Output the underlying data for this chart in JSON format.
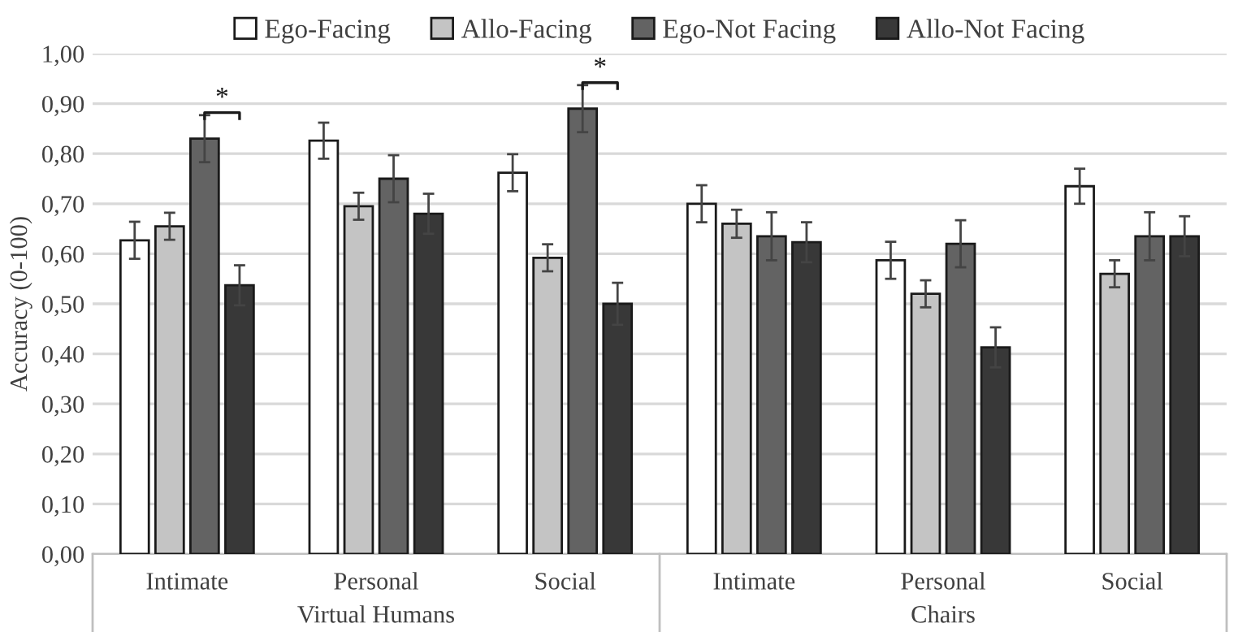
{
  "chart_data": {
    "type": "bar",
    "ylabel": "Accuracy (0-100)",
    "categories": [
      "Intimate",
      "Personal",
      "Social",
      "Intimate",
      "Personal",
      "Social"
    ],
    "series": [
      {
        "name": "Ego-Facing",
        "color": "#ffffff",
        "values": [
          0.627,
          0.826,
          0.762,
          0.7,
          0.587,
          0.735
        ],
        "errors": [
          0.037,
          0.036,
          0.037,
          0.037,
          0.037,
          0.035
        ]
      },
      {
        "name": "Allo-Facing",
        "color": "#c4c4c4",
        "values": [
          0.655,
          0.695,
          0.592,
          0.66,
          0.52,
          0.56
        ],
        "errors": [
          0.027,
          0.027,
          0.027,
          0.028,
          0.027,
          0.027
        ]
      },
      {
        "name": "Ego-Not Facing",
        "color": "#636363",
        "values": [
          0.83,
          0.75,
          0.89,
          0.635,
          0.62,
          0.635
        ],
        "errors": [
          0.047,
          0.047,
          0.047,
          0.048,
          0.047,
          0.048
        ]
      },
      {
        "name": "Allo-Not Facing",
        "color": "#383838",
        "values": [
          0.537,
          0.68,
          0.5,
          0.623,
          0.413,
          0.635
        ],
        "errors": [
          0.04,
          0.04,
          0.042,
          0.04,
          0.04,
          0.04
        ]
      }
    ],
    "ylim": [
      0,
      1
    ],
    "yticks": [
      {
        "value": 0,
        "label": "0,00"
      },
      {
        "value": 0.1,
        "label": "0,10"
      },
      {
        "value": 0.2,
        "label": "0,20"
      },
      {
        "value": 0.3,
        "label": "0,30"
      },
      {
        "value": 0.4,
        "label": "0,40"
      },
      {
        "value": 0.5,
        "label": "0,50"
      },
      {
        "value": 0.6,
        "label": "0,60"
      },
      {
        "value": 0.7,
        "label": "0,70"
      },
      {
        "value": 0.8,
        "label": "0,80"
      },
      {
        "value": 0.9,
        "label": "0,90"
      },
      {
        "value": 1,
        "label": "1,00"
      }
    ],
    "grid": "y",
    "legend": "top",
    "annotations": [
      "*",
      "*",
      "Virtual Humans",
      "Chairs"
    ]
  }
}
